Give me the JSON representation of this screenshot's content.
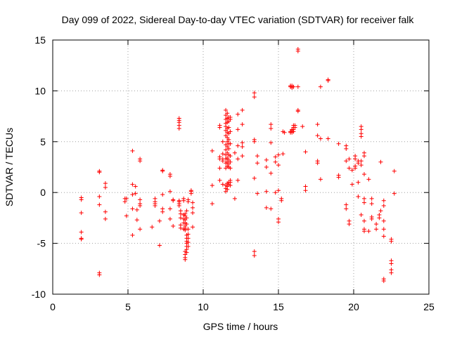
{
  "chart_data": {
    "type": "scatter",
    "title": "Day 099 of 2022, Sidereal Day-to-day VTEC variation (SDTVAR) for receiver falk",
    "xlabel": "GPS time / hours",
    "ylabel": "SDTVAR / TECUs",
    "xlim": [
      0,
      25
    ],
    "ylim": [
      -10,
      15
    ],
    "x_ticks": [
      0,
      5,
      10,
      15,
      20,
      25
    ],
    "y_ticks": [
      -10,
      -5,
      0,
      5,
      10,
      15
    ],
    "x_tick_labels": [
      "0",
      "5",
      "10",
      "15",
      "20",
      "25"
    ],
    "y_tick_labels": [
      "-10",
      "-5",
      "0",
      "5",
      "10",
      "15"
    ],
    "grid": true,
    "marker": "+",
    "color": "#ff0000",
    "series": [
      {
        "name": "SDTVAR",
        "points": [
          [
            1.9,
            -0.5
          ],
          [
            1.9,
            -0.7
          ],
          [
            1.9,
            -2.0
          ],
          [
            1.9,
            -3.9
          ],
          [
            1.9,
            -4.5
          ],
          [
            1.9,
            -4.6
          ],
          [
            3.1,
            2.1
          ],
          [
            3.1,
            2.0
          ],
          [
            3.1,
            -0.4
          ],
          [
            3.1,
            -1.2
          ],
          [
            3.1,
            -7.9
          ],
          [
            3.1,
            -8.1
          ],
          [
            3.5,
            0.9
          ],
          [
            3.5,
            0.5
          ],
          [
            3.5,
            -1.9
          ],
          [
            3.5,
            -2.6
          ],
          [
            4.8,
            -0.6
          ],
          [
            4.8,
            -0.9
          ],
          [
            4.9,
            -0.6
          ],
          [
            4.9,
            -2.3
          ],
          [
            5.3,
            4.1
          ],
          [
            5.3,
            0.8
          ],
          [
            5.3,
            -0.2
          ],
          [
            5.3,
            -1.6
          ],
          [
            5.3,
            -4.2
          ],
          [
            5.5,
            0.6
          ],
          [
            5.5,
            -0.1
          ],
          [
            5.6,
            -1.7
          ],
          [
            5.6,
            -2.7
          ],
          [
            5.8,
            3.3
          ],
          [
            5.8,
            3.1
          ],
          [
            5.8,
            -0.7
          ],
          [
            5.8,
            -1.1
          ],
          [
            5.8,
            -1.3
          ],
          [
            5.8,
            -3.6
          ],
          [
            6.6,
            -3.4
          ],
          [
            6.8,
            -0.6
          ],
          [
            6.8,
            -0.9
          ],
          [
            6.8,
            -1.1
          ],
          [
            6.8,
            -1.3
          ],
          [
            7.1,
            -2.8
          ],
          [
            7.1,
            -5.2
          ],
          [
            7.3,
            2.2
          ],
          [
            7.3,
            2.1
          ],
          [
            7.3,
            -0.2
          ],
          [
            7.3,
            -1.6
          ],
          [
            7.3,
            -1.9
          ],
          [
            7.8,
            1.8
          ],
          [
            7.8,
            1.6
          ],
          [
            7.8,
            0.1
          ],
          [
            7.8,
            -1.6
          ],
          [
            7.8,
            -2.6
          ],
          [
            8.0,
            -0.7
          ],
          [
            8.0,
            -0.8
          ],
          [
            8.0,
            -3.3
          ],
          [
            8.4,
            7.3
          ],
          [
            8.4,
            7.1
          ],
          [
            8.4,
            6.9
          ],
          [
            8.4,
            6.6
          ],
          [
            8.4,
            6.3
          ],
          [
            8.4,
            -0.8
          ],
          [
            8.4,
            -0.9
          ],
          [
            8.4,
            -1.1
          ],
          [
            8.4,
            -1.3
          ],
          [
            8.5,
            -1.8
          ],
          [
            8.5,
            -2.1
          ],
          [
            8.5,
            -2.5
          ],
          [
            8.5,
            -3.2
          ],
          [
            8.5,
            -3.5
          ],
          [
            8.7,
            -0.6
          ],
          [
            8.7,
            -0.8
          ],
          [
            8.7,
            -2.2
          ],
          [
            8.7,
            -2.6
          ],
          [
            8.7,
            -3.0
          ],
          [
            8.7,
            -3.6
          ],
          [
            8.8,
            -2.1
          ],
          [
            8.8,
            -2.3
          ],
          [
            8.8,
            -2.7
          ],
          [
            8.8,
            -3.0
          ],
          [
            8.8,
            -3.3
          ],
          [
            8.8,
            -3.5
          ],
          [
            8.8,
            -3.7
          ],
          [
            8.8,
            -5.8
          ],
          [
            8.8,
            -6.1
          ],
          [
            8.8,
            -6.4
          ],
          [
            8.8,
            -6.6
          ],
          [
            8.9,
            -4.2
          ],
          [
            8.9,
            -4.5
          ],
          [
            8.9,
            -4.8
          ],
          [
            8.9,
            -5.0
          ],
          [
            8.9,
            -5.3
          ],
          [
            8.9,
            -5.6
          ],
          [
            8.9,
            -5.9
          ],
          [
            8.9,
            -1.8
          ],
          [
            8.9,
            -2.5
          ],
          [
            8.9,
            -3.1
          ],
          [
            9.0,
            -0.7
          ],
          [
            9.0,
            -0.9
          ],
          [
            9.0,
            -3.6
          ],
          [
            9.0,
            -4.1
          ],
          [
            9.0,
            -4.5
          ],
          [
            9.0,
            -4.9
          ],
          [
            9.0,
            -5.3
          ],
          [
            9.2,
            0.2
          ],
          [
            9.2,
            0.1
          ],
          [
            9.2,
            -0.1
          ],
          [
            9.3,
            -1.0
          ],
          [
            9.3,
            -1.5
          ],
          [
            9.3,
            -2.0
          ],
          [
            9.3,
            -3.4
          ],
          [
            10.6,
            4.1
          ],
          [
            10.6,
            0.7
          ],
          [
            10.6,
            -1.1
          ],
          [
            11.1,
            6.6
          ],
          [
            11.1,
            6.4
          ],
          [
            11.1,
            3.5
          ],
          [
            11.1,
            3.3
          ],
          [
            11.1,
            2.4
          ],
          [
            11.1,
            1.2
          ],
          [
            11.3,
            5.0
          ],
          [
            11.3,
            3.8
          ],
          [
            11.3,
            3.3
          ],
          [
            11.3,
            3.1
          ],
          [
            11.3,
            0.8
          ],
          [
            11.5,
            8.1
          ],
          [
            11.5,
            7.6
          ],
          [
            11.5,
            7.2
          ],
          [
            11.5,
            6.8
          ],
          [
            11.5,
            6.5
          ],
          [
            11.5,
            6.1
          ],
          [
            11.5,
            5.6
          ],
          [
            11.5,
            4.7
          ],
          [
            11.5,
            4.2
          ],
          [
            11.5,
            3.7
          ],
          [
            11.5,
            3.3
          ],
          [
            11.5,
            2.9
          ],
          [
            11.5,
            2.4
          ],
          [
            11.5,
            0.7
          ],
          [
            11.5,
            0.4
          ],
          [
            11.5,
            0.1
          ],
          [
            11.6,
            7.8
          ],
          [
            11.6,
            7.3
          ],
          [
            11.6,
            6.9
          ],
          [
            11.6,
            6.3
          ],
          [
            11.6,
            5.9
          ],
          [
            11.6,
            5.4
          ],
          [
            11.6,
            5.0
          ],
          [
            11.6,
            4.5
          ],
          [
            11.6,
            3.9
          ],
          [
            11.6,
            3.4
          ],
          [
            11.6,
            3.0
          ],
          [
            11.6,
            2.6
          ],
          [
            11.6,
            0.9
          ],
          [
            11.6,
            0.6
          ],
          [
            11.6,
            0.3
          ],
          [
            11.7,
            7.4
          ],
          [
            11.7,
            7.0
          ],
          [
            11.7,
            6.4
          ],
          [
            11.7,
            5.8
          ],
          [
            11.7,
            5.2
          ],
          [
            11.7,
            4.8
          ],
          [
            11.7,
            4.3
          ],
          [
            11.7,
            3.7
          ],
          [
            11.7,
            3.2
          ],
          [
            11.7,
            2.8
          ],
          [
            11.7,
            2.5
          ],
          [
            11.7,
            1.0
          ],
          [
            11.7,
            0.8
          ],
          [
            11.8,
            7.4
          ],
          [
            11.8,
            7.2
          ],
          [
            11.8,
            6.0
          ],
          [
            11.8,
            4.8
          ],
          [
            11.8,
            3.6
          ],
          [
            11.8,
            3.0
          ],
          [
            11.8,
            2.4
          ],
          [
            11.8,
            1.2
          ],
          [
            11.8,
            1.0
          ],
          [
            11.8,
            0.7
          ],
          [
            12.1,
            3.9
          ],
          [
            12.1,
            -0.6
          ],
          [
            12.3,
            7.7
          ],
          [
            12.3,
            6.2
          ],
          [
            12.3,
            4.6
          ],
          [
            12.3,
            3.3
          ],
          [
            12.3,
            1.2
          ],
          [
            12.6,
            8.1
          ],
          [
            12.6,
            6.7
          ],
          [
            12.6,
            4.9
          ],
          [
            12.6,
            4.5
          ],
          [
            12.6,
            3.6
          ],
          [
            13.4,
            9.8
          ],
          [
            13.4,
            9.4
          ],
          [
            13.4,
            5.2
          ],
          [
            13.4,
            5.0
          ],
          [
            13.4,
            1.4
          ],
          [
            13.4,
            -5.8
          ],
          [
            13.4,
            -6.2
          ],
          [
            13.6,
            3.6
          ],
          [
            13.6,
            2.9
          ],
          [
            13.6,
            -0.1
          ],
          [
            14.2,
            3.2
          ],
          [
            14.2,
            2.5
          ],
          [
            14.2,
            0.1
          ],
          [
            14.2,
            -1.5
          ],
          [
            14.5,
            6.7
          ],
          [
            14.5,
            6.3
          ],
          [
            14.5,
            4.9
          ],
          [
            14.5,
            1.9
          ],
          [
            14.5,
            -1.6
          ],
          [
            14.8,
            3.5
          ],
          [
            14.8,
            3.0
          ],
          [
            14.8,
            0.0
          ],
          [
            15.0,
            3.7
          ],
          [
            15.0,
            2.7
          ],
          [
            15.0,
            0.2
          ],
          [
            15.0,
            -2.6
          ],
          [
            15.0,
            -2.9
          ],
          [
            15.2,
            -0.6
          ],
          [
            15.2,
            -0.8
          ],
          [
            15.3,
            3.8
          ],
          [
            15.3,
            6.0
          ],
          [
            15.4,
            5.9
          ],
          [
            15.8,
            10.5
          ],
          [
            15.8,
            10.4
          ],
          [
            15.8,
            6.0
          ],
          [
            15.8,
            5.9
          ],
          [
            15.9,
            10.5
          ],
          [
            15.9,
            10.3
          ],
          [
            15.9,
            6.2
          ],
          [
            15.9,
            6.1
          ],
          [
            15.9,
            5.9
          ],
          [
            16.0,
            10.4
          ],
          [
            16.0,
            6.6
          ],
          [
            16.0,
            6.4
          ],
          [
            16.0,
            6.2
          ],
          [
            16.0,
            6.0
          ],
          [
            16.1,
            6.6
          ],
          [
            16.1,
            6.4
          ],
          [
            16.3,
            14.1
          ],
          [
            16.3,
            13.9
          ],
          [
            16.3,
            10.4
          ],
          [
            16.3,
            8.1
          ],
          [
            16.3,
            8.0
          ],
          [
            16.6,
            6.5
          ],
          [
            16.8,
            4.0
          ],
          [
            16.8,
            0.6
          ],
          [
            16.8,
            0.2
          ],
          [
            17.6,
            6.7
          ],
          [
            17.6,
            5.6
          ],
          [
            17.6,
            3.1
          ],
          [
            17.6,
            2.9
          ],
          [
            17.8,
            10.4
          ],
          [
            17.8,
            5.3
          ],
          [
            17.8,
            1.3
          ],
          [
            18.3,
            11.1
          ],
          [
            18.3,
            11.0
          ],
          [
            18.3,
            5.3
          ],
          [
            19.0,
            4.8
          ],
          [
            19.0,
            1.7
          ],
          [
            19.0,
            1.5
          ],
          [
            19.5,
            4.6
          ],
          [
            19.5,
            4.3
          ],
          [
            19.5,
            3.1
          ],
          [
            19.5,
            -1.2
          ],
          [
            19.5,
            -1.6
          ],
          [
            19.7,
            3.3
          ],
          [
            19.7,
            2.4
          ],
          [
            19.7,
            -2.8
          ],
          [
            19.7,
            -3.1
          ],
          [
            19.9,
            2.2
          ],
          [
            19.9,
            0.8
          ],
          [
            20.1,
            3.6
          ],
          [
            20.1,
            3.3
          ],
          [
            20.1,
            2.6
          ],
          [
            20.1,
            2.4
          ],
          [
            20.3,
            3.1
          ],
          [
            20.3,
            2.9
          ],
          [
            20.3,
            1.0
          ],
          [
            20.3,
            -0.4
          ],
          [
            20.5,
            6.5
          ],
          [
            20.5,
            6.2
          ],
          [
            20.5,
            5.8
          ],
          [
            20.5,
            5.5
          ],
          [
            20.5,
            3.1
          ],
          [
            20.5,
            2.7
          ],
          [
            20.5,
            -2.2
          ],
          [
            20.7,
            3.9
          ],
          [
            20.7,
            3.6
          ],
          [
            20.7,
            1.8
          ],
          [
            20.7,
            -0.6
          ],
          [
            20.7,
            -1.0
          ],
          [
            20.7,
            -2.8
          ],
          [
            20.7,
            -3.6
          ],
          [
            20.7,
            -3.8
          ],
          [
            21.0,
            1.3
          ],
          [
            21.0,
            -3.8
          ],
          [
            21.2,
            -0.6
          ],
          [
            21.2,
            -1.1
          ],
          [
            21.2,
            -2.4
          ],
          [
            21.2,
            -2.6
          ],
          [
            21.5,
            -3.1
          ],
          [
            21.5,
            -3.6
          ],
          [
            21.7,
            -2.2
          ],
          [
            21.7,
            -2.5
          ],
          [
            21.8,
            3.0
          ],
          [
            21.8,
            -1.8
          ],
          [
            22.0,
            -0.8
          ],
          [
            22.0,
            -1.3
          ],
          [
            22.0,
            -2.8
          ],
          [
            22.0,
            -3.6
          ],
          [
            22.0,
            -4.3
          ],
          [
            22.0,
            -8.5
          ],
          [
            22.0,
            -8.7
          ],
          [
            22.5,
            -4.6
          ],
          [
            22.5,
            -4.8
          ],
          [
            22.5,
            -6.7
          ],
          [
            22.5,
            -7.0
          ],
          [
            22.5,
            -7.6
          ],
          [
            22.5,
            -7.9
          ],
          [
            22.7,
            2.1
          ],
          [
            22.7,
            -0.1
          ]
        ]
      }
    ]
  }
}
